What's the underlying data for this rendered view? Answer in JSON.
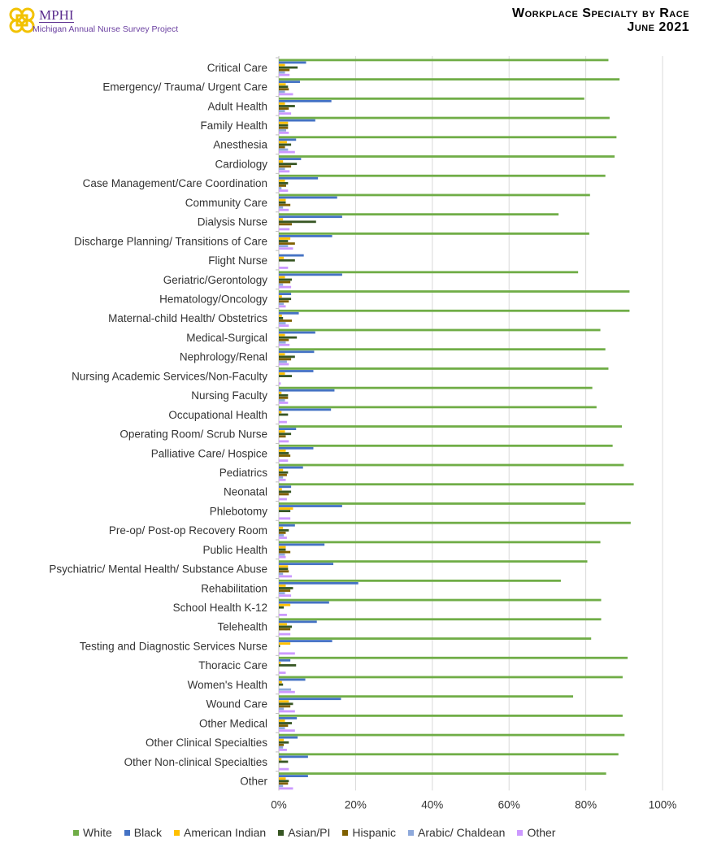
{
  "header": {
    "logo_name": "MPHI",
    "logo_subtitle": "Michigan Annual Nurse Survey Project",
    "title_line1": "Workplace Specialty by Race",
    "title_line2": "June 2021"
  },
  "chart_data": {
    "type": "bar",
    "orientation": "horizontal",
    "title": "Workplace Specialty by Race",
    "subtitle": "June 2021",
    "xlabel": "",
    "ylabel": "",
    "xlim": [
      0,
      100
    ],
    "x_ticks": [
      "0%",
      "20%",
      "40%",
      "60%",
      "80%",
      "100%"
    ],
    "grid": "vertical",
    "legend_position": "bottom",
    "categories": [
      "Critical Care",
      "Emergency/ Trauma/ Urgent Care",
      "Adult Health",
      "Family Health",
      "Anesthesia",
      "Cardiology",
      "Case Management/Care Coordination",
      "Community Care",
      "Dialysis Nurse",
      "Discharge Planning/ Transitions of Care",
      "Flight Nurse",
      "Geriatric/Gerontology",
      "Hematology/Oncology",
      "Maternal-child Health/ Obstetrics",
      "Medical-Surgical",
      "Nephrology/Renal",
      "Nursing Academic Services/Non-Faculty",
      "Nursing Faculty",
      "Occupational Health",
      "Operating Room/ Scrub Nurse",
      "Palliative Care/ Hospice",
      "Pediatrics",
      "Neonatal",
      "Phlebotomy",
      "Pre-op/ Post-op Recovery Room",
      "Public Health",
      "Psychiatric/ Mental Health/ Substance Abuse",
      "Rehabilitation",
      "School Health K-12",
      "Telehealth",
      "Testing and Diagnostic Services Nurse",
      "Thoracic Care",
      "Women's Health",
      "Wound Care",
      "Other Medical",
      "Other Clinical Specialties",
      "Other Non-clinical Specialties",
      "Other"
    ],
    "series": [
      {
        "name": "White",
        "color": "#70AD47",
        "values": [
          85.9,
          88.8,
          79.6,
          86.2,
          88.0,
          87.5,
          85.1,
          81.1,
          72.9,
          80.9,
          0,
          78.0,
          91.4,
          91.4,
          83.8,
          85.1,
          85.9,
          81.7,
          82.8,
          89.4,
          87.0,
          89.9,
          92.5,
          79.9,
          91.7,
          83.8,
          80.4,
          73.5,
          84.0,
          84.0,
          81.4,
          90.9,
          89.6,
          76.7,
          89.6,
          90.1,
          88.5,
          85.3
        ]
      },
      {
        "name": "Black",
        "color": "#4472C4",
        "values": [
          7.1,
          5.5,
          13.7,
          9.5,
          4.5,
          5.8,
          10.2,
          15.2,
          16.5,
          13.9,
          6.5,
          16.5,
          3.2,
          5.2,
          9.5,
          9.2,
          9.0,
          14.5,
          13.6,
          4.5,
          9.0,
          6.3,
          3.2,
          16.5,
          4.2,
          11.9,
          14.2,
          20.7,
          13.1,
          9.9,
          13.9,
          3.0,
          6.9,
          16.2,
          4.7,
          4.9,
          7.6,
          7.6
        ]
      },
      {
        "name": "American Indian",
        "color": "#FFC000",
        "values": [
          1.6,
          1.8,
          1.6,
          2.4,
          2.1,
          1.1,
          1.6,
          1.8,
          1.1,
          3.0,
          1.3,
          1.6,
          0.8,
          0.8,
          1.6,
          1.6,
          1.6,
          0.7,
          0.7,
          1.6,
          1.8,
          1.1,
          0.8,
          3.7,
          1.1,
          1.8,
          2.4,
          1.8,
          3.0,
          2.1,
          3.0,
          0.5,
          0.8,
          2.6,
          1.6,
          1.3,
          0.7,
          1.8
        ]
      },
      {
        "name": "Asian/PI",
        "color": "#375623",
        "values": [
          4.9,
          2.4,
          4.2,
          2.4,
          3.2,
          4.7,
          2.4,
          1.8,
          9.7,
          2.4,
          4.2,
          3.4,
          3.2,
          1.1,
          4.7,
          4.2,
          3.4,
          2.4,
          2.4,
          3.2,
          2.6,
          2.4,
          3.2,
          3.0,
          2.6,
          1.8,
          2.4,
          3.7,
          1.3,
          3.4,
          0.3,
          4.5,
          1.1,
          3.7,
          3.4,
          2.6,
          2.4,
          2.6
        ]
      },
      {
        "name": "Hispanic",
        "color": "#7F6000",
        "values": [
          2.8,
          2.6,
          2.6,
          2.4,
          1.6,
          3.2,
          1.9,
          3.0,
          3.4,
          4.2,
          0,
          3.0,
          2.6,
          3.4,
          2.6,
          3.2,
          0,
          2.4,
          0,
          1.8,
          3.0,
          2.1,
          2.6,
          0,
          1.8,
          3.0,
          2.6,
          3.0,
          0,
          3.0,
          0,
          0,
          0,
          3.0,
          2.4,
          1.3,
          0,
          2.4
        ]
      },
      {
        "name": "Arabic/ Chaldean",
        "color": "#8EA9DB",
        "values": [
          1.6,
          1.6,
          1.6,
          1.9,
          2.4,
          1.6,
          0.7,
          1.1,
          0,
          2.4,
          0,
          1.1,
          1.3,
          1.8,
          1.8,
          2.1,
          0,
          1.6,
          0,
          0,
          0,
          1.1,
          0,
          0,
          1.3,
          1.6,
          1.1,
          1.6,
          0,
          0,
          0,
          0,
          3.2,
          1.3,
          1.6,
          1.1,
          0,
          1.1
        ]
      },
      {
        "name": "Other",
        "color": "#CC99FF",
        "values": [
          2.8,
          3.7,
          3.2,
          2.6,
          4.2,
          2.8,
          2.4,
          2.6,
          2.8,
          3.7,
          2.4,
          3.2,
          1.8,
          2.6,
          2.8,
          2.6,
          0.5,
          2.4,
          2.1,
          2.6,
          2.4,
          1.8,
          2.1,
          3.0,
          2.1,
          1.8,
          3.4,
          3.2,
          2.1,
          3.0,
          4.2,
          1.8,
          4.2,
          4.2,
          4.2,
          2.1,
          2.6,
          3.7
        ]
      }
    ]
  }
}
